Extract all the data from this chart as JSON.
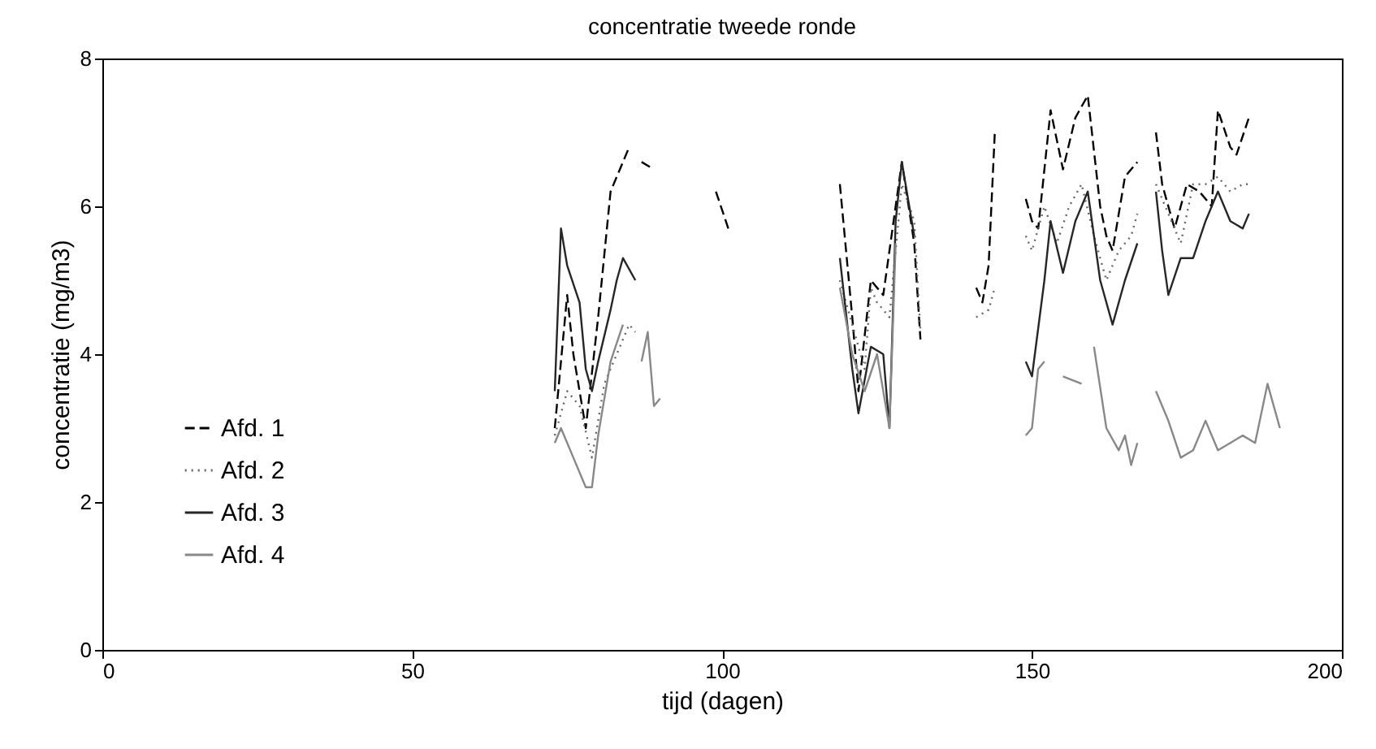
{
  "chart_data": {
    "type": "line",
    "title": "concentratie tweede ronde",
    "xlabel": "tijd (dagen)",
    "ylabel": "concentratie (mg/m3)",
    "xlim": [
      0,
      200
    ],
    "xticks": [
      0,
      50,
      100,
      150,
      200
    ],
    "ylim": [
      0,
      8
    ],
    "yticks": [
      0,
      2,
      4,
      6,
      8
    ],
    "grid": false,
    "legend": "bottom left",
    "marker": "none",
    "series": [
      {
        "name": "Afd. 1",
        "color": "#000000",
        "line_style": "dashed",
        "x": [
          73,
          75,
          76,
          78,
          80,
          82,
          84,
          85,
          86,
          87,
          89,
          90,
          99,
          101,
          110,
          119,
          121,
          122,
          124,
          126,
          128,
          129,
          131,
          132,
          136,
          141,
          142,
          143,
          144,
          147,
          149,
          150,
          151,
          153,
          155,
          157,
          159,
          161,
          162,
          163,
          165,
          167,
          168,
          170,
          171,
          173,
          175,
          177,
          179,
          180,
          182,
          183,
          185
        ],
        "values": [
          3.0,
          4.8,
          4.0,
          3.0,
          4.5,
          6.2,
          6.6,
          6.8,
          null,
          6.6,
          6.5,
          null,
          6.2,
          5.7,
          null,
          6.3,
          4.5,
          3.5,
          5.0,
          4.8,
          6.0,
          6.6,
          5.5,
          4.2,
          null,
          4.9,
          4.7,
          5.2,
          7.0,
          null,
          6.1,
          5.8,
          5.7,
          7.3,
          6.5,
          7.2,
          7.5,
          6.0,
          5.6,
          5.4,
          6.4,
          6.6,
          null,
          7.0,
          6.3,
          5.7,
          6.3,
          6.2,
          6.0,
          7.3,
          6.8,
          6.7,
          7.2
        ]
      },
      {
        "name": "Afd. 2",
        "color": "#666666",
        "line_style": "dotted",
        "x": [
          73,
          75,
          77,
          79,
          81,
          83,
          85,
          86,
          100,
          119,
          121,
          123,
          124,
          125,
          127,
          129,
          131,
          132,
          136,
          141,
          143,
          144,
          147,
          149,
          150,
          152,
          154,
          156,
          158,
          160,
          162,
          164,
          166,
          167,
          168,
          170,
          172,
          174,
          176,
          178,
          180,
          182,
          184,
          185
        ],
        "values": [
          2.9,
          3.5,
          3.3,
          2.6,
          3.6,
          4.0,
          4.4,
          4.3,
          null,
          5.0,
          4.4,
          3.8,
          4.9,
          4.7,
          4.5,
          6.3,
          5.8,
          4.3,
          null,
          4.5,
          4.6,
          4.9,
          null,
          5.6,
          5.4,
          6.0,
          5.5,
          6.0,
          6.3,
          5.6,
          5.0,
          5.4,
          5.6,
          5.9,
          null,
          6.3,
          5.9,
          5.5,
          6.3,
          6.3,
          6.4,
          6.2,
          6.3,
          6.3
        ]
      },
      {
        "name": "Afd. 3",
        "color": "#262626",
        "line_style": "solid",
        "x": [
          73,
          74,
          75,
          77,
          78,
          79,
          80,
          82,
          83,
          84,
          86,
          100,
          119,
          121,
          122,
          124,
          126,
          127,
          128,
          129,
          130,
          131,
          140,
          149,
          150,
          152,
          153,
          155,
          157,
          159,
          161,
          163,
          165,
          167,
          168,
          170,
          171,
          172,
          174,
          176,
          178,
          180,
          182,
          184,
          185
        ],
        "values": [
          3.5,
          5.7,
          5.2,
          4.7,
          3.8,
          3.5,
          3.9,
          4.6,
          5.0,
          5.3,
          5.0,
          null,
          5.3,
          3.8,
          3.2,
          4.1,
          4.0,
          3.0,
          5.8,
          6.6,
          6.1,
          5.6,
          null,
          3.9,
          3.7,
          5.0,
          5.8,
          5.1,
          5.8,
          6.2,
          5.0,
          4.4,
          5.0,
          5.5,
          null,
          6.2,
          5.4,
          4.8,
          5.3,
          5.3,
          5.8,
          6.2,
          5.8,
          5.7,
          5.9
        ]
      },
      {
        "name": "Afd. 4",
        "color": "#888888",
        "line_style": "solid",
        "x": [
          73,
          74,
          76,
          78,
          79,
          80,
          82,
          84,
          85,
          87,
          88,
          89,
          90,
          100,
          119,
          121,
          123,
          125,
          127,
          128,
          140,
          149,
          150,
          151,
          152,
          153,
          155,
          158,
          159,
          160,
          162,
          164,
          165,
          166,
          167,
          168,
          170,
          172,
          174,
          176,
          178,
          180,
          182,
          184,
          186,
          188,
          190
        ],
        "values": [
          2.8,
          3.0,
          2.6,
          2.2,
          2.2,
          2.9,
          3.9,
          4.4,
          null,
          3.9,
          4.3,
          3.3,
          3.4,
          null,
          4.9,
          4.0,
          3.5,
          4.0,
          3.0,
          5.5,
          null,
          2.9,
          3.0,
          3.8,
          3.9,
          null,
          3.7,
          3.6,
          null,
          4.1,
          3.0,
          2.7,
          2.9,
          2.5,
          2.8,
          null,
          3.5,
          3.1,
          2.6,
          2.7,
          3.1,
          2.7,
          2.8,
          2.9,
          2.8,
          3.6,
          3.0
        ]
      }
    ]
  }
}
